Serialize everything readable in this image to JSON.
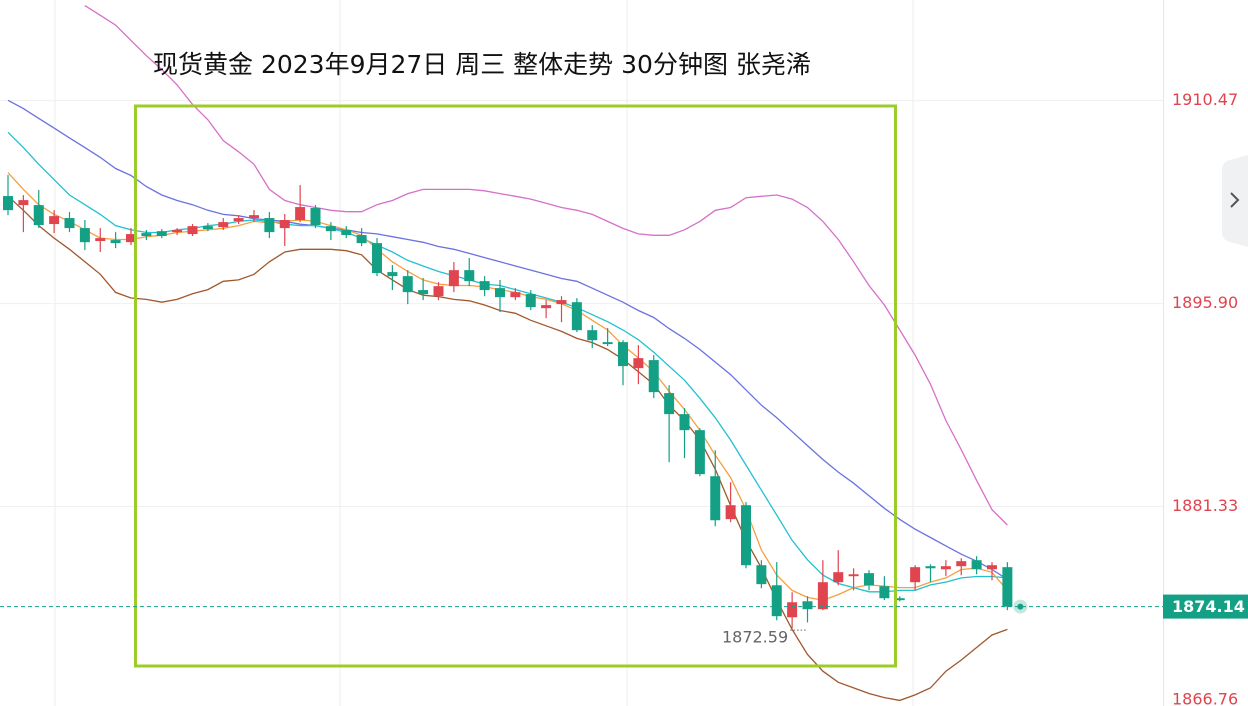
{
  "chart_data": {
    "type": "candlestick",
    "title": "现货黄金 2023年9月27日 周三 整体走势 30分钟图  张尧浠",
    "ylim": [
      1867.0,
      1917.7
    ],
    "yticks": [
      1910.47,
      {
        "value": 1895.9,
        "label": "1895.90"
      },
      1881.33,
      1866.76
    ],
    "grid": true,
    "up_color": "#e0444e",
    "down_color": "#14a085",
    "open": [
      1903.62,
      1902.97,
      1902.97,
      1901.61,
      1902.04,
      1901.32,
      1900.39,
      1900.46,
      1900.31,
      1900.96,
      1901.1,
      1901.03,
      1900.89,
      1901.46,
      1901.39,
      1901.82,
      1902.04,
      1902.04,
      1901.32,
      1901.9,
      1902.76,
      1901.46,
      1901.18,
      1900.82,
      1900.24,
      1898.16,
      1897.87,
      1896.87,
      1896.43,
      1897.15,
      1898.3,
      1897.51,
      1897.01,
      1896.36,
      1896.58,
      1895.57,
      1895.86,
      1896.0,
      1893.99,
      1893.13,
      1893.13,
      1891.26,
      1891.84,
      1889.47,
      1887.96,
      1886.81,
      1883.5,
      1880.42,
      1881.42,
      1877.11,
      1875.67,
      1873.37,
      1874.52,
      1873.95,
      1875.89,
      1876.32,
      1876.54,
      1875.6,
      1874.74,
      1875.89,
      1877.04,
      1876.82,
      1877.04,
      1877.47,
      1876.82,
      1876.97
    ],
    "high": [
      1905.13,
      1903.69,
      1904.05,
      1902.61,
      1902.47,
      1901.9,
      1901.32,
      1901.03,
      1901.32,
      1901.18,
      1901.25,
      1901.32,
      1901.61,
      1901.68,
      1902.04,
      1902.25,
      1902.61,
      1902.47,
      1902.33,
      1904.41,
      1902.97,
      1901.75,
      1901.46,
      1901.32,
      1900.6,
      1898.66,
      1898.3,
      1897.73,
      1897.44,
      1898.88,
      1899.17,
      1897.87,
      1897.59,
      1897.01,
      1896.87,
      1896.15,
      1896.43,
      1896.29,
      1894.35,
      1894.14,
      1893.27,
      1892.92,
      1892.2,
      1890.04,
      1888.39,
      1886.95,
      1885.37,
      1883.07,
      1881.64,
      1877.47,
      1877.33,
      1875.17,
      1874.88,
      1877.47,
      1878.19,
      1876.89,
      1876.75,
      1876.32,
      1874.88,
      1877.11,
      1877.18,
      1877.47,
      1877.61,
      1877.76,
      1877.33,
      1877.33
    ],
    "low": [
      1902.25,
      1901.03,
      1901.32,
      1900.96,
      1901.03,
      1899.74,
      1899.6,
      1899.88,
      1900.1,
      1900.46,
      1900.6,
      1900.82,
      1900.75,
      1901.1,
      1901.18,
      1901.61,
      1901.75,
      1900.6,
      1900.03,
      1901.75,
      1901.32,
      1900.46,
      1900.6,
      1900.03,
      1897.87,
      1896.87,
      1895.86,
      1896.15,
      1896.15,
      1896.72,
      1897.15,
      1896.43,
      1895.29,
      1896.15,
      1895.43,
      1894.85,
      1894.57,
      1893.85,
      1892.7,
      1892.84,
      1890.04,
      1890.11,
      1889.11,
      1884.51,
      1884.8,
      1883.5,
      1879.91,
      1880.2,
      1876.89,
      1875.46,
      1873.16,
      1872.59,
      1873.0,
      1873.88,
      1875.67,
      1875.31,
      1875.31,
      1874.6,
      1874.52,
      1875.31,
      1875.89,
      1876.32,
      1876.39,
      1876.46,
      1876.03,
      1873.88
    ],
    "close": [
      1902.61,
      1903.33,
      1901.54,
      1902.18,
      1901.32,
      1900.31,
      1900.6,
      1900.24,
      1900.89,
      1900.75,
      1900.75,
      1901.18,
      1901.46,
      1901.25,
      1901.75,
      1902.04,
      1902.25,
      1901.03,
      1901.9,
      1902.83,
      1901.54,
      1901.1,
      1900.82,
      1900.24,
      1898.09,
      1897.87,
      1896.72,
      1896.58,
      1897.15,
      1898.3,
      1897.51,
      1896.87,
      1896.36,
      1896.72,
      1895.65,
      1895.79,
      1896.15,
      1893.99,
      1893.27,
      1892.99,
      1891.41,
      1891.98,
      1889.54,
      1887.96,
      1886.81,
      1883.65,
      1880.34,
      1881.42,
      1877.11,
      1875.75,
      1873.45,
      1874.45,
      1873.95,
      1875.89,
      1876.61,
      1876.46,
      1875.67,
      1874.74,
      1874.6,
      1876.97,
      1876.89,
      1877.04,
      1877.4,
      1876.82,
      1877.11,
      1874.14
    ],
    "lines": [
      {
        "color": "#d670c8",
        "values": [
          null,
          null,
          null,
          null,
          null,
          1917.3,
          1916.6,
          1915.9,
          1914.8,
          1913.7,
          1912.7,
          1911.6,
          1910.2,
          1909.1,
          1907.6,
          1906.8,
          1905.9,
          1904.1,
          1903.3,
          1903.0,
          1902.8,
          1902.6,
          1902.5,
          1902.5,
          1903.0,
          1903.3,
          1903.8,
          1904.1,
          1904.1,
          1904.1,
          1904.1,
          1904.0,
          1903.8,
          1903.6,
          1903.4,
          1903.1,
          1902.8,
          1902.6,
          1902.3,
          1901.8,
          1901.3,
          1900.9,
          1900.8,
          1900.8,
          1901.2,
          1901.8,
          1902.6,
          1902.8,
          1903.5,
          1903.6,
          1903.7,
          1903.4,
          1902.8,
          1901.8,
          1900.5,
          1898.9,
          1897.2,
          1895.8,
          1894.0,
          1892.2,
          1890.1,
          1887.5,
          1885.4,
          1883.2,
          1881.1,
          1880.0
        ]
      },
      {
        "color": "#a0582a",
        "values": [
          1903.6,
          1902.6,
          1901.5,
          1900.6,
          1899.8,
          1898.9,
          1898.0,
          1896.7,
          1896.3,
          1896.2,
          1896.0,
          1896.2,
          1896.6,
          1896.9,
          1897.5,
          1897.6,
          1898.0,
          1898.9,
          1899.6,
          1899.8,
          1899.8,
          1899.8,
          1899.7,
          1899.4,
          1898.3,
          1897.6,
          1896.9,
          1896.5,
          1896.4,
          1896.2,
          1896.1,
          1895.8,
          1895.4,
          1895.2,
          1894.7,
          1894.3,
          1893.9,
          1893.4,
          1893.1,
          1892.6,
          1891.9,
          1891.0,
          1890.1,
          1888.6,
          1887.5,
          1886.1,
          1884.0,
          1881.4,
          1878.9,
          1876.9,
          1874.6,
          1872.5,
          1870.7,
          1869.5,
          1868.7,
          1868.3,
          1867.9,
          1867.6,
          1867.4,
          1867.8,
          1868.3,
          1869.5,
          1870.3,
          1871.2,
          1872.1,
          1872.5
        ]
      },
      {
        "color": "#6a72e0",
        "values": [
          1910.5,
          1909.9,
          1909.2,
          1908.5,
          1907.8,
          1907.1,
          1906.4,
          1905.6,
          1905.1,
          1904.3,
          1903.7,
          1903.3,
          1903.0,
          1902.6,
          1902.3,
          1902.2,
          1902.0,
          1901.9,
          1901.8,
          1901.6,
          1901.5,
          1901.3,
          1901.2,
          1901.0,
          1900.9,
          1900.7,
          1900.5,
          1900.3,
          1900.0,
          1899.8,
          1899.5,
          1899.2,
          1898.9,
          1898.6,
          1898.3,
          1898.0,
          1897.7,
          1897.5,
          1897.0,
          1896.5,
          1896.0,
          1895.4,
          1894.9,
          1894.1,
          1893.4,
          1892.6,
          1891.7,
          1890.8,
          1889.7,
          1888.6,
          1887.7,
          1886.7,
          1885.7,
          1884.7,
          1883.8,
          1883.0,
          1882.1,
          1881.2,
          1880.4,
          1879.7,
          1879.1,
          1878.5,
          1877.9,
          1877.4,
          1876.8,
          1876.1
        ]
      },
      {
        "color": "#22c0d0",
        "values": [
          1908.2,
          1907.1,
          1905.9,
          1904.8,
          1903.7,
          1903.0,
          1902.3,
          1901.5,
          1901.2,
          1901.0,
          1901.0,
          1901.2,
          1901.3,
          1901.5,
          1901.6,
          1901.8,
          1901.9,
          1901.8,
          1901.6,
          1901.5,
          1901.5,
          1901.3,
          1901.0,
          1900.6,
          1900.1,
          1899.6,
          1899.0,
          1898.6,
          1898.2,
          1897.9,
          1897.6,
          1897.3,
          1897.2,
          1896.9,
          1896.6,
          1896.3,
          1896.0,
          1895.6,
          1895.1,
          1894.6,
          1894.0,
          1893.3,
          1892.4,
          1891.4,
          1890.4,
          1889.1,
          1887.7,
          1886.1,
          1884.3,
          1882.5,
          1880.7,
          1878.9,
          1877.5,
          1876.4,
          1875.8,
          1875.5,
          1875.2,
          1875.2,
          1875.3,
          1875.3,
          1875.7,
          1875.9,
          1876.2,
          1876.3,
          1876.3,
          1876.2
        ]
      },
      {
        "color": "#f5a040",
        "values": [
          1905.3,
          1904.1,
          1903.0,
          1902.3,
          1901.8,
          1901.2,
          1900.6,
          1900.5,
          1900.5,
          1900.7,
          1900.8,
          1901.0,
          1901.1,
          1901.2,
          1901.3,
          1901.5,
          1901.8,
          1901.7,
          1901.8,
          1901.9,
          1901.8,
          1901.5,
          1901.2,
          1900.8,
          1899.8,
          1898.9,
          1898.2,
          1897.6,
          1897.3,
          1897.2,
          1897.2,
          1897.1,
          1896.9,
          1896.7,
          1896.4,
          1896.2,
          1895.9,
          1895.4,
          1894.7,
          1894.0,
          1892.9,
          1892.0,
          1891.0,
          1889.6,
          1888.3,
          1886.8,
          1885.0,
          1883.4,
          1881.1,
          1878.2,
          1876.4,
          1875.3,
          1874.8,
          1874.6,
          1875.0,
          1875.5,
          1875.7,
          1875.6,
          1875.5,
          1875.5,
          1875.9,
          1876.2,
          1876.8,
          1876.9,
          1876.6,
          1875.3
        ]
      }
    ]
  }
}
